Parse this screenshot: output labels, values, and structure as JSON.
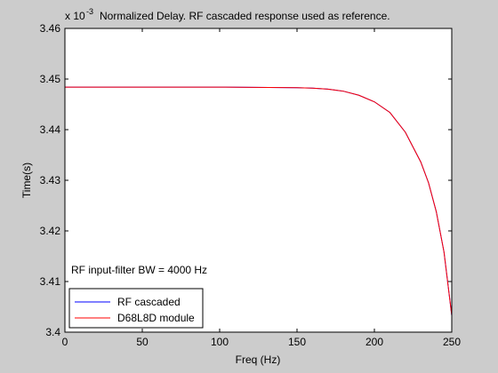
{
  "chart_data": {
    "type": "line",
    "title": "Normalized Delay. RF cascaded response used as reference.",
    "xlabel": "Freq (Hz)",
    "ylabel": "Time(s)",
    "exponent_base": "x 10",
    "exponent_power": "-3",
    "annotation": "RF input-filter BW = 4000 Hz",
    "xlim": [
      0,
      250
    ],
    "ylim": [
      3.4,
      3.46
    ],
    "xticks": [
      0,
      50,
      100,
      150,
      200,
      250
    ],
    "xtick_labels": [
      "0",
      "50",
      "100",
      "150",
      "200",
      "250"
    ],
    "yticks": [
      3.4,
      3.41,
      3.42,
      3.43,
      3.44,
      3.45,
      3.46
    ],
    "ytick_labels": [
      "3.4",
      "3.41",
      "3.42",
      "3.43",
      "3.44",
      "3.45",
      "3.46"
    ],
    "grid": false,
    "legend_position": "bottom-left",
    "series": [
      {
        "name": "RF cascaded",
        "color": "#0000ff",
        "x": [
          0,
          50,
          100,
          150,
          160,
          170,
          180,
          190,
          200,
          210,
          220,
          230,
          235,
          240,
          245,
          250
        ],
        "y": [
          3.4484,
          3.4484,
          3.4484,
          3.4483,
          3.4482,
          3.448,
          3.4476,
          3.4468,
          3.4455,
          3.4434,
          3.4395,
          3.4336,
          3.4295,
          3.4238,
          3.4158,
          3.4033
        ]
      },
      {
        "name": "D68L8D module",
        "color": "#ff0000",
        "x": [
          0,
          50,
          100,
          150,
          160,
          170,
          180,
          190,
          200,
          210,
          220,
          230,
          235,
          240,
          245,
          250
        ],
        "y": [
          3.4484,
          3.4484,
          3.4484,
          3.4483,
          3.4482,
          3.448,
          3.4476,
          3.4468,
          3.4455,
          3.4434,
          3.4395,
          3.4336,
          3.4295,
          3.4238,
          3.4158,
          3.4033
        ]
      }
    ]
  }
}
